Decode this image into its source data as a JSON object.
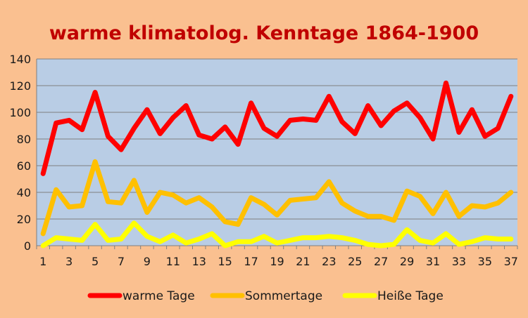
{
  "chart_data": {
    "type": "line",
    "title": "warme klimatolog. Kenntage 1864-1900",
    "xlabel": "",
    "ylabel": "",
    "ylim": [
      0,
      140
    ],
    "yticks": [
      0,
      20,
      40,
      60,
      80,
      100,
      120,
      140
    ],
    "x": [
      1,
      2,
      3,
      4,
      5,
      6,
      7,
      8,
      9,
      10,
      11,
      12,
      13,
      14,
      15,
      16,
      17,
      18,
      19,
      20,
      21,
      22,
      23,
      24,
      25,
      26,
      27,
      28,
      29,
      30,
      31,
      32,
      33,
      34,
      35,
      36,
      37
    ],
    "xticks": [
      1,
      3,
      5,
      7,
      9,
      11,
      13,
      15,
      17,
      19,
      21,
      23,
      25,
      27,
      29,
      31,
      33,
      35,
      37
    ],
    "grid": "horizontal",
    "legend_position": "bottom",
    "plot_background": "#B9CDE5",
    "series": [
      {
        "name": "warme Tage",
        "color": "#FF0000",
        "values": [
          54,
          92,
          94,
          87,
          115,
          82,
          72,
          88,
          102,
          84,
          96,
          105,
          83,
          80,
          89,
          76,
          107,
          88,
          82,
          94,
          95,
          94,
          112,
          93,
          84,
          105,
          90,
          101,
          107,
          96,
          80,
          122,
          85,
          102,
          82,
          88,
          112
        ]
      },
      {
        "name": "Sommertage",
        "color": "#FFC000",
        "values": [
          9,
          42,
          29,
          30,
          63,
          33,
          32,
          49,
          25,
          40,
          38,
          32,
          36,
          29,
          18,
          16,
          36,
          31,
          23,
          34,
          35,
          36,
          48,
          32,
          26,
          22,
          22,
          19,
          41,
          37,
          24,
          40,
          22,
          30,
          29,
          32,
          40
        ]
      },
      {
        "name": "Heiße Tage",
        "color": "#FFFF00",
        "values": [
          0,
          6,
          5,
          4,
          16,
          4,
          5,
          17,
          7,
          3,
          8,
          2,
          5,
          9,
          0,
          3,
          3,
          7,
          2,
          4,
          6,
          6,
          7,
          6,
          4,
          1,
          0,
          1,
          12,
          4,
          2,
          9,
          1,
          3,
          6,
          5,
          5
        ]
      }
    ]
  }
}
